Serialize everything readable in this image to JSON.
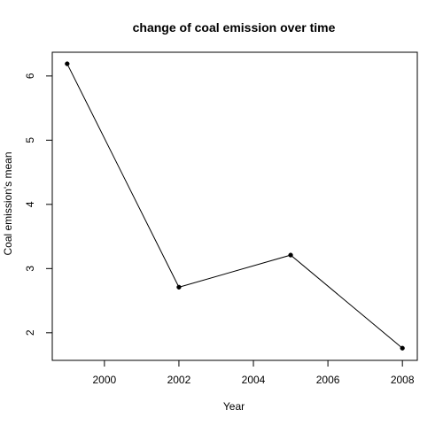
{
  "chart_data": {
    "type": "line",
    "title": "change of coal emission over time",
    "xlabel": "Year",
    "ylabel": "Coal emission's mean",
    "x": [
      1999,
      2002,
      2005,
      2008
    ],
    "series": [
      {
        "values": [
          6.19,
          2.71,
          3.21,
          1.76
        ]
      }
    ],
    "xticks": [
      2000,
      2002,
      2004,
      2006,
      2008
    ],
    "yticks": [
      2,
      3,
      4,
      5,
      6
    ],
    "xlim": [
      1998.6,
      2008.4
    ],
    "ylim": [
      1.57,
      6.37
    ],
    "grid": false,
    "line_color": "#000000",
    "marker_color": "#000000"
  }
}
